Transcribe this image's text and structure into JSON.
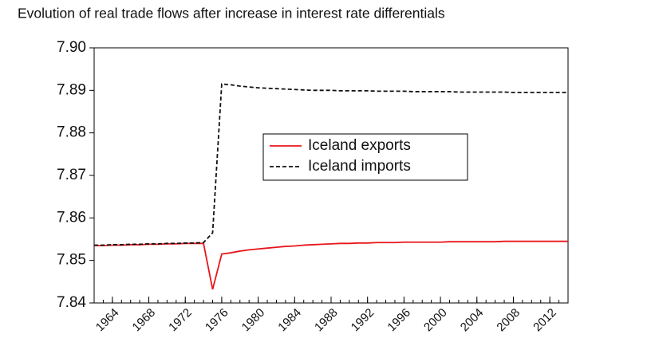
{
  "chart_data": {
    "type": "line",
    "title": "Evolution of real trade flows after increase in interest rate differentials",
    "x": [
      1962,
      1963,
      1964,
      1965,
      1966,
      1967,
      1968,
      1969,
      1970,
      1971,
      1972,
      1973,
      1974,
      1975,
      1976,
      1977,
      1978,
      1979,
      1980,
      1981,
      1982,
      1983,
      1984,
      1985,
      1986,
      1987,
      1988,
      1989,
      1990,
      1991,
      1992,
      1993,
      1994,
      1995,
      1996,
      1997,
      1998,
      1999,
      2000,
      2001,
      2002,
      2003,
      2004,
      2005,
      2006,
      2007,
      2008,
      2009,
      2010,
      2011,
      2012,
      2013,
      2014
    ],
    "xlim": [
      1962,
      2014
    ],
    "xticks": [
      1964,
      1968,
      1972,
      1976,
      1980,
      1984,
      1988,
      1992,
      1996,
      2000,
      2004,
      2008,
      2012
    ],
    "ylim": [
      7.84,
      7.9
    ],
    "yticks": [
      7.84,
      7.85,
      7.86,
      7.87,
      7.88,
      7.89,
      {
        "value": 7.9,
        "label": "7.90"
      }
    ],
    "legend": "center",
    "series": [
      {
        "name": "Iceland exports",
        "color": "#e8161b",
        "dash": "solid",
        "values": [
          7.8535,
          7.8535,
          7.8536,
          7.8536,
          7.8537,
          7.8537,
          7.8538,
          7.8538,
          7.8539,
          7.8539,
          7.854,
          7.854,
          7.854,
          7.8432,
          7.8515,
          7.8518,
          7.8522,
          7.8525,
          7.8527,
          7.8529,
          7.8531,
          7.8533,
          7.8534,
          7.8536,
          7.8537,
          7.8538,
          7.8539,
          7.854,
          7.854,
          7.8541,
          7.8541,
          7.8542,
          7.8542,
          7.8542,
          7.8543,
          7.8543,
          7.8543,
          7.8543,
          7.8543,
          7.8544,
          7.8544,
          7.8544,
          7.8544,
          7.8544,
          7.8544,
          7.8545,
          7.8545,
          7.8545,
          7.8545,
          7.8545,
          7.8545,
          7.8545,
          7.8545
        ]
      },
      {
        "name": "Iceland imports",
        "color": "#111111",
        "dash": "dashed",
        "values": [
          7.8536,
          7.8536,
          7.8537,
          7.8537,
          7.8538,
          7.8538,
          7.8539,
          7.8539,
          7.854,
          7.854,
          7.8541,
          7.8541,
          7.8542,
          7.8565,
          7.8915,
          7.8913,
          7.891,
          7.8908,
          7.8906,
          7.8905,
          7.8904,
          7.8903,
          7.8902,
          7.8901,
          7.89,
          7.89,
          7.89,
          7.8899,
          7.8899,
          7.8899,
          7.8899,
          7.8898,
          7.8898,
          7.8898,
          7.8898,
          7.8897,
          7.8897,
          7.8897,
          7.8897,
          7.8897,
          7.8896,
          7.8896,
          7.8896,
          7.8896,
          7.8896,
          7.8896,
          7.8895,
          7.8895,
          7.8895,
          7.8895,
          7.8895,
          7.8895,
          7.8895
        ]
      }
    ]
  }
}
